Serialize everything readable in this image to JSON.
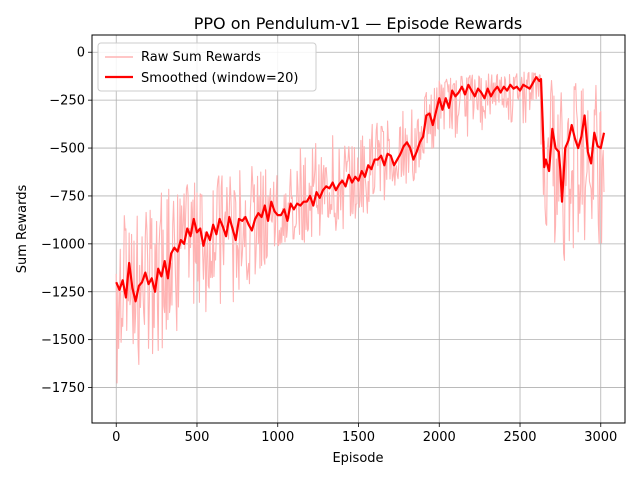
{
  "chart_data": {
    "type": "line",
    "title": "PPO on Pendulum-v1 — Episode Rewards",
    "xlabel": "Episode",
    "ylabel": "Sum Rewards",
    "xlim": [
      -150,
      3150
    ],
    "ylim": [
      -1935,
      90
    ],
    "xticks": [
      0,
      500,
      1000,
      1500,
      2000,
      2500,
      3000
    ],
    "yticks": [
      0,
      -250,
      -500,
      -750,
      -1000,
      -1250,
      -1500,
      -1750
    ],
    "grid": true,
    "legend_position": "upper-left",
    "x_range": [
      0,
      3020
    ],
    "series": [
      {
        "name": "Raw Sum Rewards",
        "color": "#ffb3b3",
        "style": "raw-noisy",
        "lower_envelope": [
          [
            0,
            -1800
          ],
          [
            100,
            -1760
          ],
          [
            200,
            -1700
          ],
          [
            300,
            -1520
          ],
          [
            400,
            -1450
          ],
          [
            500,
            -1400
          ],
          [
            600,
            -1380
          ],
          [
            700,
            -1340
          ],
          [
            800,
            -1300
          ],
          [
            900,
            -1150
          ],
          [
            1000,
            -1050
          ],
          [
            1100,
            -1020
          ],
          [
            1200,
            -980
          ],
          [
            1300,
            -960
          ],
          [
            1400,
            -940
          ],
          [
            1500,
            -880
          ],
          [
            1600,
            -850
          ],
          [
            1700,
            -780
          ],
          [
            1800,
            -720
          ],
          [
            1900,
            -620
          ],
          [
            2000,
            -520
          ],
          [
            2100,
            -470
          ],
          [
            2200,
            -430
          ],
          [
            2300,
            -400
          ],
          [
            2400,
            -390
          ],
          [
            2500,
            -370
          ],
          [
            2600,
            -420
          ],
          [
            2650,
            -900
          ],
          [
            2700,
            -1080
          ],
          [
            2800,
            -1100
          ],
          [
            2900,
            -1060
          ],
          [
            3000,
            -1000
          ]
        ],
        "upper_envelope": [
          [
            0,
            -850
          ],
          [
            100,
            -840
          ],
          [
            200,
            -760
          ],
          [
            300,
            -720
          ],
          [
            400,
            -700
          ],
          [
            500,
            -680
          ],
          [
            600,
            -650
          ],
          [
            700,
            -610
          ],
          [
            800,
            -600
          ],
          [
            900,
            -590
          ],
          [
            1000,
            -560
          ],
          [
            1100,
            -520
          ],
          [
            1200,
            -470
          ],
          [
            1300,
            -430
          ],
          [
            1400,
            -400
          ],
          [
            1500,
            -380
          ],
          [
            1600,
            -360
          ],
          [
            1700,
            -330
          ],
          [
            1800,
            -300
          ],
          [
            1900,
            -220
          ],
          [
            2000,
            -150
          ],
          [
            2100,
            -130
          ],
          [
            2200,
            -120
          ],
          [
            2300,
            -110
          ],
          [
            2400,
            -100
          ],
          [
            2500,
            -100
          ],
          [
            2600,
            -110
          ],
          [
            2700,
            -150
          ],
          [
            2800,
            -150
          ],
          [
            2900,
            -180
          ],
          [
            3000,
            -170
          ]
        ]
      },
      {
        "name": "Smoothed (window=20)",
        "color": "#ff0000",
        "style": "smoothed",
        "points": [
          [
            0,
            -1200
          ],
          [
            20,
            -1240
          ],
          [
            40,
            -1190
          ],
          [
            60,
            -1280
          ],
          [
            80,
            -1100
          ],
          [
            100,
            -1230
          ],
          [
            120,
            -1300
          ],
          [
            140,
            -1220
          ],
          [
            160,
            -1200
          ],
          [
            180,
            -1150
          ],
          [
            200,
            -1210
          ],
          [
            220,
            -1180
          ],
          [
            240,
            -1250
          ],
          [
            260,
            -1130
          ],
          [
            280,
            -1170
          ],
          [
            300,
            -1090
          ],
          [
            320,
            -1180
          ],
          [
            340,
            -1050
          ],
          [
            360,
            -1020
          ],
          [
            380,
            -1040
          ],
          [
            400,
            -980
          ],
          [
            420,
            -1000
          ],
          [
            440,
            -920
          ],
          [
            460,
            -960
          ],
          [
            480,
            -870
          ],
          [
            500,
            -940
          ],
          [
            520,
            -920
          ],
          [
            540,
            -1010
          ],
          [
            560,
            -940
          ],
          [
            580,
            -980
          ],
          [
            600,
            -900
          ],
          [
            620,
            -950
          ],
          [
            640,
            -870
          ],
          [
            660,
            -910
          ],
          [
            680,
            -960
          ],
          [
            700,
            -860
          ],
          [
            720,
            -920
          ],
          [
            740,
            -980
          ],
          [
            760,
            -870
          ],
          [
            780,
            -880
          ],
          [
            800,
            -860
          ],
          [
            820,
            -900
          ],
          [
            840,
            -930
          ],
          [
            860,
            -870
          ],
          [
            880,
            -840
          ],
          [
            900,
            -860
          ],
          [
            920,
            -800
          ],
          [
            940,
            -880
          ],
          [
            960,
            -780
          ],
          [
            980,
            -830
          ],
          [
            1000,
            -850
          ],
          [
            1020,
            -850
          ],
          [
            1040,
            -820
          ],
          [
            1060,
            -880
          ],
          [
            1080,
            -790
          ],
          [
            1100,
            -820
          ],
          [
            1120,
            -790
          ],
          [
            1140,
            -800
          ],
          [
            1160,
            -780
          ],
          [
            1180,
            -780
          ],
          [
            1200,
            -750
          ],
          [
            1220,
            -800
          ],
          [
            1240,
            -730
          ],
          [
            1260,
            -760
          ],
          [
            1280,
            -720
          ],
          [
            1300,
            -700
          ],
          [
            1320,
            -710
          ],
          [
            1340,
            -680
          ],
          [
            1360,
            -720
          ],
          [
            1380,
            -690
          ],
          [
            1400,
            -670
          ],
          [
            1420,
            -700
          ],
          [
            1440,
            -640
          ],
          [
            1460,
            -680
          ],
          [
            1480,
            -650
          ],
          [
            1500,
            -670
          ],
          [
            1520,
            -620
          ],
          [
            1540,
            -650
          ],
          [
            1560,
            -590
          ],
          [
            1580,
            -610
          ],
          [
            1600,
            -560
          ],
          [
            1620,
            -560
          ],
          [
            1640,
            -540
          ],
          [
            1660,
            -590
          ],
          [
            1680,
            -530
          ],
          [
            1700,
            -540
          ],
          [
            1720,
            -590
          ],
          [
            1740,
            -560
          ],
          [
            1760,
            -530
          ],
          [
            1780,
            -490
          ],
          [
            1800,
            -470
          ],
          [
            1820,
            -500
          ],
          [
            1840,
            -560
          ],
          [
            1860,
            -520
          ],
          [
            1880,
            -470
          ],
          [
            1900,
            -440
          ],
          [
            1920,
            -330
          ],
          [
            1940,
            -320
          ],
          [
            1960,
            -380
          ],
          [
            1980,
            -310
          ],
          [
            2000,
            -240
          ],
          [
            2020,
            -300
          ],
          [
            2040,
            -240
          ],
          [
            2060,
            -290
          ],
          [
            2080,
            -200
          ],
          [
            2100,
            -230
          ],
          [
            2120,
            -210
          ],
          [
            2140,
            -180
          ],
          [
            2160,
            -220
          ],
          [
            2180,
            -170
          ],
          [
            2200,
            -200
          ],
          [
            2220,
            -230
          ],
          [
            2240,
            -190
          ],
          [
            2260,
            -210
          ],
          [
            2280,
            -240
          ],
          [
            2300,
            -190
          ],
          [
            2320,
            -230
          ],
          [
            2340,
            -200
          ],
          [
            2360,
            -180
          ],
          [
            2380,
            -210
          ],
          [
            2400,
            -180
          ],
          [
            2420,
            -200
          ],
          [
            2440,
            -170
          ],
          [
            2460,
            -190
          ],
          [
            2480,
            -180
          ],
          [
            2500,
            -200
          ],
          [
            2520,
            -170
          ],
          [
            2540,
            -180
          ],
          [
            2560,
            -190
          ],
          [
            2580,
            -160
          ],
          [
            2600,
            -130
          ],
          [
            2620,
            -150
          ],
          [
            2630,
            -140
          ],
          [
            2640,
            -360
          ],
          [
            2650,
            -600
          ],
          [
            2660,
            -560
          ],
          [
            2680,
            -620
          ],
          [
            2700,
            -400
          ],
          [
            2720,
            -500
          ],
          [
            2740,
            -520
          ],
          [
            2750,
            -620
          ],
          [
            2760,
            -780
          ],
          [
            2780,
            -500
          ],
          [
            2800,
            -460
          ],
          [
            2820,
            -380
          ],
          [
            2840,
            -450
          ],
          [
            2860,
            -500
          ],
          [
            2880,
            -440
          ],
          [
            2900,
            -330
          ],
          [
            2920,
            -520
          ],
          [
            2940,
            -580
          ],
          [
            2960,
            -420
          ],
          [
            2980,
            -490
          ],
          [
            3000,
            -500
          ],
          [
            3020,
            -420
          ]
        ]
      }
    ]
  }
}
